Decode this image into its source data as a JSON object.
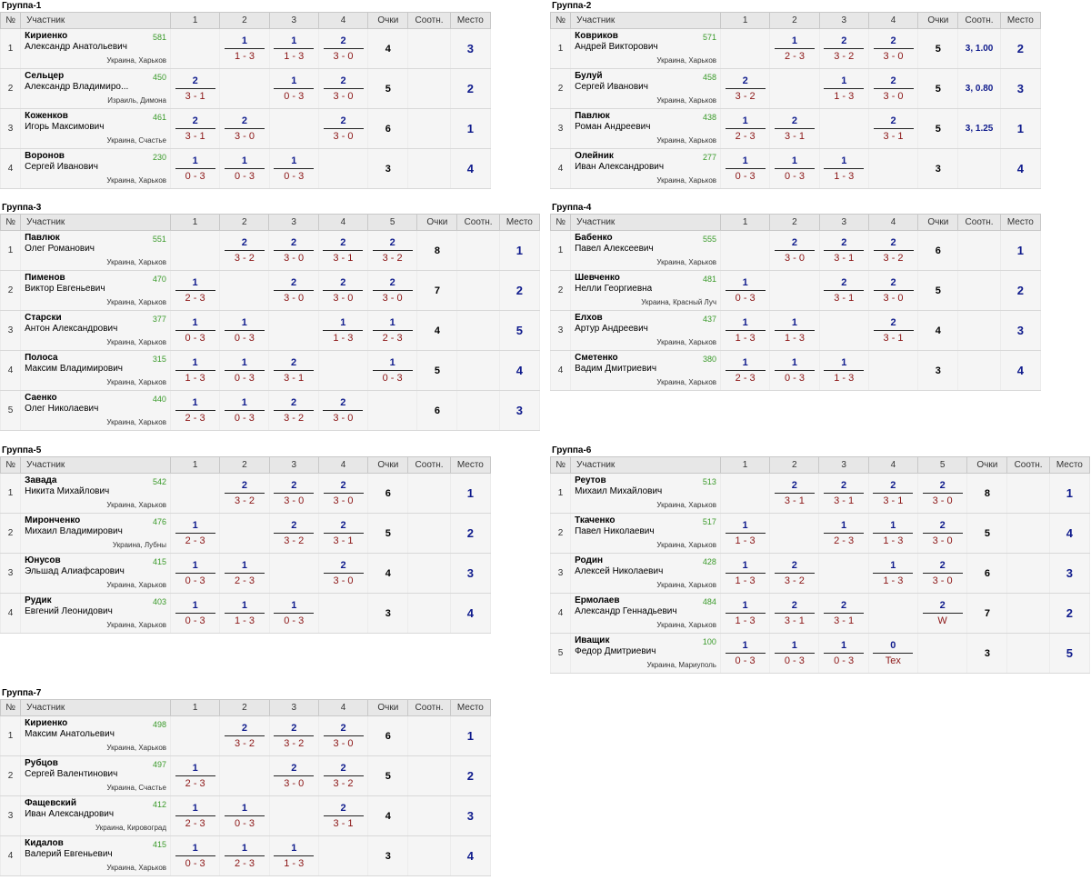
{
  "header": {
    "num": "№",
    "participant": "Участник",
    "points": "Очки",
    "ratio": "Соотн.",
    "place": "Место"
  },
  "groups": [
    {
      "title": "Группа-1",
      "players": [
        {
          "surname": "Кириенко",
          "name": "Александр Анатольевич",
          "rating": "581",
          "location": "Украина, Харьков",
          "results": [
            null,
            [
              "1",
              "1 - 3"
            ],
            [
              "1",
              "1 - 3"
            ],
            [
              "2",
              "3 - 0"
            ]
          ],
          "points": "4",
          "ratio": "",
          "place": "3"
        },
        {
          "surname": "Сельцер",
          "name": "Александр Владимиро...",
          "rating": "450",
          "location": "Израиль, Димона",
          "results": [
            [
              "2",
              "3 - 1"
            ],
            null,
            [
              "1",
              "0 - 3"
            ],
            [
              "2",
              "3 - 0"
            ]
          ],
          "points": "5",
          "ratio": "",
          "place": "2"
        },
        {
          "surname": "Коженков",
          "name": "Игорь Максимович",
          "rating": "461",
          "location": "Украина, Счастье",
          "results": [
            [
              "2",
              "3 - 1"
            ],
            [
              "2",
              "3 - 0"
            ],
            null,
            [
              "2",
              "3 - 0"
            ]
          ],
          "points": "6",
          "ratio": "",
          "place": "1"
        },
        {
          "surname": "Воронов",
          "name": "Сергей Иванович",
          "rating": "230",
          "location": "Украина, Харьков",
          "results": [
            [
              "1",
              "0 - 3"
            ],
            [
              "1",
              "0 - 3"
            ],
            [
              "1",
              "0 - 3"
            ],
            null
          ],
          "points": "3",
          "ratio": "",
          "place": "4"
        }
      ]
    },
    {
      "title": "Группа-2",
      "players": [
        {
          "surname": "Ковриков",
          "name": "Андрей Викторович",
          "rating": "571",
          "location": "Украина, Харьков",
          "results": [
            null,
            [
              "1",
              "2 - 3"
            ],
            [
              "2",
              "3 - 2"
            ],
            [
              "2",
              "3 - 0"
            ]
          ],
          "points": "5",
          "ratio": "3, 1.00",
          "place": "2"
        },
        {
          "surname": "Булуй",
          "name": "Сергей Иванович",
          "rating": "458",
          "location": "Украина, Харьков",
          "results": [
            [
              "2",
              "3 - 2"
            ],
            null,
            [
              "1",
              "1 - 3"
            ],
            [
              "2",
              "3 - 0"
            ]
          ],
          "points": "5",
          "ratio": "3, 0.80",
          "place": "3"
        },
        {
          "surname": "Павлюк",
          "name": "Роман Андреевич",
          "rating": "438",
          "location": "Украина, Харьков",
          "results": [
            [
              "1",
              "2 - 3"
            ],
            [
              "2",
              "3 - 1"
            ],
            null,
            [
              "2",
              "3 - 1"
            ]
          ],
          "points": "5",
          "ratio": "3, 1.25",
          "place": "1"
        },
        {
          "surname": "Олейник",
          "name": "Иван Александрович",
          "rating": "277",
          "location": "Украина, Харьков",
          "results": [
            [
              "1",
              "0 - 3"
            ],
            [
              "1",
              "0 - 3"
            ],
            [
              "1",
              "1 - 3"
            ],
            null
          ],
          "points": "3",
          "ratio": "",
          "place": "4"
        }
      ]
    },
    {
      "title": "Группа-3",
      "players": [
        {
          "surname": "Павлюк",
          "name": "Олег Романович",
          "rating": "551",
          "location": "Украина, Харьков",
          "results": [
            null,
            [
              "2",
              "3 - 2"
            ],
            [
              "2",
              "3 - 0"
            ],
            [
              "2",
              "3 - 1"
            ],
            [
              "2",
              "3 - 2"
            ]
          ],
          "points": "8",
          "ratio": "",
          "place": "1"
        },
        {
          "surname": "Пименов",
          "name": "Виктор Евгеньевич",
          "rating": "470",
          "location": "Украина, Харьков",
          "results": [
            [
              "1",
              "2 - 3"
            ],
            null,
            [
              "2",
              "3 - 0"
            ],
            [
              "2",
              "3 - 0"
            ],
            [
              "2",
              "3 - 0"
            ]
          ],
          "points": "7",
          "ratio": "",
          "place": "2"
        },
        {
          "surname": "Старски",
          "name": "Антон Александрович",
          "rating": "377",
          "location": "Украина, Харьков",
          "results": [
            [
              "1",
              "0 - 3"
            ],
            [
              "1",
              "0 - 3"
            ],
            null,
            [
              "1",
              "1 - 3"
            ],
            [
              "1",
              "2 - 3"
            ]
          ],
          "points": "4",
          "ratio": "",
          "place": "5"
        },
        {
          "surname": "Полоса",
          "name": "Максим Владимирович",
          "rating": "315",
          "location": "Украина, Харьков",
          "results": [
            [
              "1",
              "1 - 3"
            ],
            [
              "1",
              "0 - 3"
            ],
            [
              "2",
              "3 - 1"
            ],
            null,
            [
              "1",
              "0 - 3"
            ]
          ],
          "points": "5",
          "ratio": "",
          "place": "4"
        },
        {
          "surname": "Саенко",
          "name": "Олег Николаевич",
          "rating": "440",
          "location": "Украина, Харьков",
          "results": [
            [
              "1",
              "2 - 3"
            ],
            [
              "1",
              "0 - 3"
            ],
            [
              "2",
              "3 - 2"
            ],
            [
              "2",
              "3 - 0"
            ],
            null
          ],
          "points": "6",
          "ratio": "",
          "place": "3"
        }
      ]
    },
    {
      "title": "Группа-4",
      "players": [
        {
          "surname": "Бабенко",
          "name": "Павел Алексеевич",
          "rating": "555",
          "location": "Украина, Харьков",
          "results": [
            null,
            [
              "2",
              "3 - 0"
            ],
            [
              "2",
              "3 - 1"
            ],
            [
              "2",
              "3 - 2"
            ]
          ],
          "points": "6",
          "ratio": "",
          "place": "1"
        },
        {
          "surname": "Шевченко",
          "name": "Нелли Георгиевна",
          "rating": "481",
          "location": "Украина, Красный Луч",
          "results": [
            [
              "1",
              "0 - 3"
            ],
            null,
            [
              "2",
              "3 - 1"
            ],
            [
              "2",
              "3 - 0"
            ]
          ],
          "points": "5",
          "ratio": "",
          "place": "2"
        },
        {
          "surname": "Елхов",
          "name": "Артур Андреевич",
          "rating": "437",
          "location": "Украина, Харьков",
          "results": [
            [
              "1",
              "1 - 3"
            ],
            [
              "1",
              "1 - 3"
            ],
            null,
            [
              "2",
              "3 - 1"
            ]
          ],
          "points": "4",
          "ratio": "",
          "place": "3"
        },
        {
          "surname": "Сметенко",
          "name": "Вадим Дмитриевич",
          "rating": "380",
          "location": "Украина, Харьков",
          "results": [
            [
              "1",
              "2 - 3"
            ],
            [
              "1",
              "0 - 3"
            ],
            [
              "1",
              "1 - 3"
            ],
            null
          ],
          "points": "3",
          "ratio": "",
          "place": "4"
        }
      ]
    },
    {
      "title": "Группа-5",
      "players": [
        {
          "surname": "Завада",
          "name": "Никита Михайлович",
          "rating": "542",
          "location": "Украина, Харьков",
          "results": [
            null,
            [
              "2",
              "3 - 2"
            ],
            [
              "2",
              "3 - 0"
            ],
            [
              "2",
              "3 - 0"
            ]
          ],
          "points": "6",
          "ratio": "",
          "place": "1"
        },
        {
          "surname": "Миронченко",
          "name": "Михаил Владимирович",
          "rating": "476",
          "location": "Украина, Лубны",
          "results": [
            [
              "1",
              "2 - 3"
            ],
            null,
            [
              "2",
              "3 - 2"
            ],
            [
              "2",
              "3 - 1"
            ]
          ],
          "points": "5",
          "ratio": "",
          "place": "2"
        },
        {
          "surname": "Юнусов",
          "name": "Эльшад Алиафсарович",
          "rating": "415",
          "location": "Украина, Харьков",
          "results": [
            [
              "1",
              "0 - 3"
            ],
            [
              "1",
              "2 - 3"
            ],
            null,
            [
              "2",
              "3 - 0"
            ]
          ],
          "points": "4",
          "ratio": "",
          "place": "3"
        },
        {
          "surname": "Рудик",
          "name": "Евгений Леонидович",
          "rating": "403",
          "location": "Украина, Харьков",
          "results": [
            [
              "1",
              "0 - 3"
            ],
            [
              "1",
              "1 - 3"
            ],
            [
              "1",
              "0 - 3"
            ],
            null
          ],
          "points": "3",
          "ratio": "",
          "place": "4"
        }
      ]
    },
    {
      "title": "Группа-6",
      "players": [
        {
          "surname": "Реутов",
          "name": "Михаил Михайлович",
          "rating": "513",
          "location": "Украина, Харьков",
          "results": [
            null,
            [
              "2",
              "3 - 1"
            ],
            [
              "2",
              "3 - 1"
            ],
            [
              "2",
              "3 - 1"
            ],
            [
              "2",
              "3 - 0"
            ]
          ],
          "points": "8",
          "ratio": "",
          "place": "1"
        },
        {
          "surname": "Ткаченко",
          "name": "Павел Николаевич",
          "rating": "517",
          "location": "Украина, Харьков",
          "results": [
            [
              "1",
              "1 - 3"
            ],
            null,
            [
              "1",
              "2 - 3"
            ],
            [
              "1",
              "1 - 3"
            ],
            [
              "2",
              "3 - 0"
            ]
          ],
          "points": "5",
          "ratio": "",
          "place": "4"
        },
        {
          "surname": "Родин",
          "name": "Алексей Николаевич",
          "rating": "428",
          "location": "Украина, Харьков",
          "results": [
            [
              "1",
              "1 - 3"
            ],
            [
              "2",
              "3 - 2"
            ],
            null,
            [
              "1",
              "1 - 3"
            ],
            [
              "2",
              "3 - 0"
            ]
          ],
          "points": "6",
          "ratio": "",
          "place": "3"
        },
        {
          "surname": "Ермолаев",
          "name": "Александр Геннадьевич",
          "rating": "484",
          "location": "Украина, Харьков",
          "results": [
            [
              "1",
              "1 - 3"
            ],
            [
              "2",
              "3 - 1"
            ],
            [
              "2",
              "3 - 1"
            ],
            null,
            [
              "2",
              "W"
            ]
          ],
          "points": "7",
          "ratio": "",
          "place": "2"
        },
        {
          "surname": "Иващик",
          "name": "Федор Дмитриевич",
          "rating": "100",
          "location": "Украина, Мариуполь",
          "results": [
            [
              "1",
              "0 - 3"
            ],
            [
              "1",
              "0 - 3"
            ],
            [
              "1",
              "0 - 3"
            ],
            [
              "0",
              "Tex"
            ],
            null
          ],
          "points": "3",
          "ratio": "",
          "place": "5"
        }
      ]
    },
    {
      "title": "Группа-7",
      "players": [
        {
          "surname": "Кириенко",
          "name": "Максим Анатольевич",
          "rating": "498",
          "location": "Украина, Харьков",
          "results": [
            null,
            [
              "2",
              "3 - 2"
            ],
            [
              "2",
              "3 - 2"
            ],
            [
              "2",
              "3 - 0"
            ]
          ],
          "points": "6",
          "ratio": "",
          "place": "1"
        },
        {
          "surname": "Рубцов",
          "name": "Сергей Валентинович",
          "rating": "497",
          "location": "Украина, Счастье",
          "results": [
            [
              "1",
              "2 - 3"
            ],
            null,
            [
              "2",
              "3 - 0"
            ],
            [
              "2",
              "3 - 2"
            ]
          ],
          "points": "5",
          "ratio": "",
          "place": "2"
        },
        {
          "surname": "Фащевский",
          "name": "Иван Александрович",
          "rating": "412",
          "location": "Украина, Кировоград",
          "results": [
            [
              "1",
              "2 - 3"
            ],
            [
              "1",
              "0 - 3"
            ],
            null,
            [
              "2",
              "3 - 1"
            ]
          ],
          "points": "4",
          "ratio": "",
          "place": "3"
        },
        {
          "surname": "Кидалов",
          "name": "Валерий Евгеньевич",
          "rating": "415",
          "location": "Украина, Харьков",
          "results": [
            [
              "1",
              "0 - 3"
            ],
            [
              "1",
              "2 - 3"
            ],
            [
              "1",
              "1 - 3"
            ],
            null
          ],
          "points": "3",
          "ratio": "",
          "place": "4"
        }
      ]
    }
  ]
}
